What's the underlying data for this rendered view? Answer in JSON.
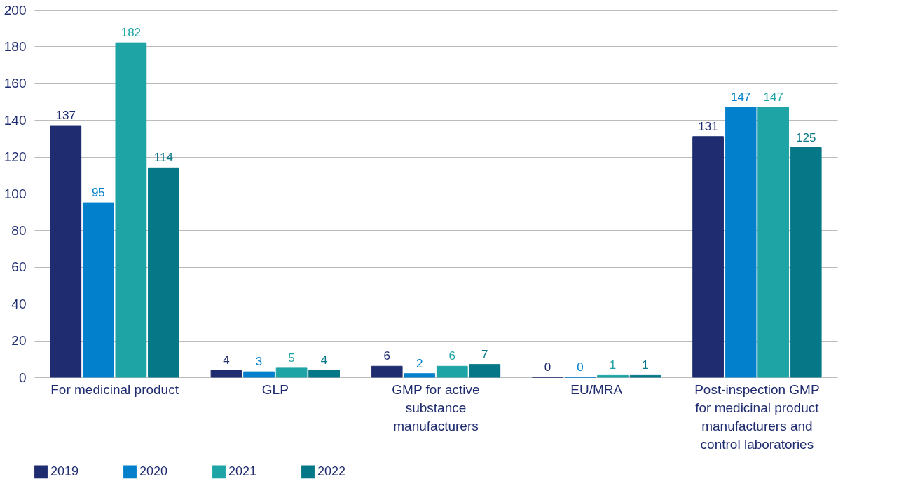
{
  "chart_data": {
    "type": "bar",
    "categories": [
      "For medicinal product",
      "GLP",
      "GMP for active substance manufacturers",
      "EU/MRA",
      "Post-inspection GMP for medicinal product manufacturers and control laboratories"
    ],
    "series": [
      {
        "name": "2019",
        "color": "#1f2c6f",
        "values": [
          137,
          4,
          6,
          0,
          131
        ]
      },
      {
        "name": "2020",
        "color": "#0380cb",
        "values": [
          95,
          3,
          2,
          0,
          147
        ]
      },
      {
        "name": "2021",
        "color": "#1fa4a6",
        "values": [
          182,
          5,
          6,
          1,
          147
        ]
      },
      {
        "name": "2022",
        "color": "#067787",
        "values": [
          114,
          4,
          7,
          1,
          125
        ]
      }
    ],
    "ylim": [
      0,
      200
    ],
    "yticks": [
      0,
      20,
      40,
      60,
      80,
      100,
      120,
      140,
      160,
      180,
      200
    ],
    "grid": "y",
    "legend": "bottom left",
    "data_labels": true
  }
}
